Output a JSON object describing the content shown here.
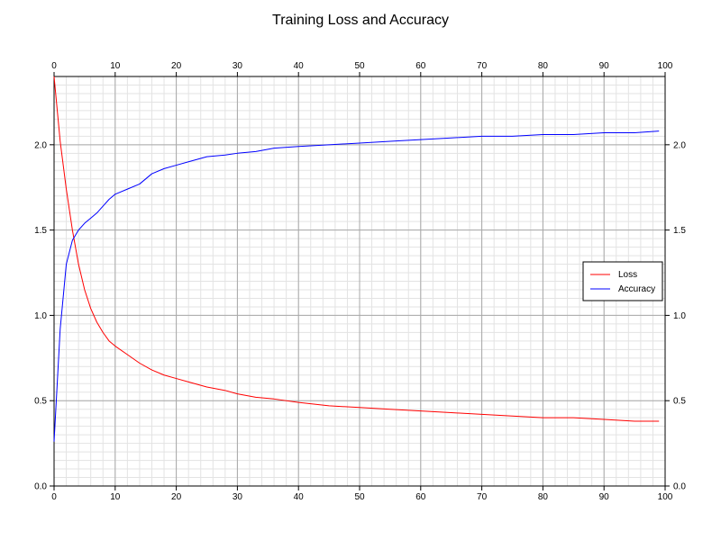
{
  "chart_data": {
    "type": "line",
    "title": "Training Loss and Accuracy",
    "xlabel": "",
    "ylabel": "",
    "xlim": [
      0,
      100
    ],
    "ylim": [
      0,
      2.4
    ],
    "x_ticks": [
      0,
      10,
      20,
      30,
      40,
      50,
      60,
      70,
      80,
      90,
      100
    ],
    "y_ticks": [
      0.0,
      0.5,
      1.0,
      1.5,
      2.0
    ],
    "x_tick_labels": [
      "0",
      "10",
      "20",
      "30",
      "40",
      "50",
      "60",
      "70",
      "80",
      "90",
      "100"
    ],
    "y_tick_labels": [
      "0.0",
      "0.5",
      "1.0",
      "1.5",
      "2.0"
    ],
    "grid": true,
    "legend_position": "right",
    "series": [
      {
        "name": "Loss",
        "color": "#ff0000",
        "x": [
          0,
          1,
          2,
          3,
          4,
          5,
          6,
          7,
          8,
          9,
          10,
          12,
          14,
          16,
          18,
          20,
          22,
          25,
          28,
          30,
          33,
          36,
          40,
          45,
          50,
          55,
          60,
          65,
          70,
          75,
          80,
          85,
          90,
          95,
          99
        ],
        "y": [
          2.4,
          2.02,
          1.74,
          1.5,
          1.3,
          1.15,
          1.04,
          0.96,
          0.9,
          0.85,
          0.82,
          0.77,
          0.72,
          0.68,
          0.65,
          0.63,
          0.61,
          0.58,
          0.56,
          0.54,
          0.52,
          0.51,
          0.49,
          0.47,
          0.46,
          0.45,
          0.44,
          0.43,
          0.42,
          0.41,
          0.4,
          0.4,
          0.39,
          0.38,
          0.38
        ]
      },
      {
        "name": "Accuracy",
        "color": "#0000ff",
        "x": [
          0,
          1,
          2,
          3,
          4,
          5,
          6,
          7,
          8,
          9,
          10,
          12,
          14,
          16,
          18,
          20,
          22,
          25,
          28,
          30,
          33,
          36,
          40,
          45,
          50,
          55,
          60,
          65,
          70,
          75,
          80,
          85,
          90,
          95,
          99
        ],
        "y": [
          0.26,
          0.92,
          1.3,
          1.44,
          1.5,
          1.54,
          1.57,
          1.6,
          1.64,
          1.68,
          1.71,
          1.74,
          1.77,
          1.83,
          1.86,
          1.88,
          1.9,
          1.93,
          1.94,
          1.95,
          1.96,
          1.98,
          1.99,
          2.0,
          2.01,
          2.02,
          2.03,
          2.04,
          2.05,
          2.05,
          2.06,
          2.06,
          2.07,
          2.07,
          2.08
        ]
      }
    ]
  }
}
